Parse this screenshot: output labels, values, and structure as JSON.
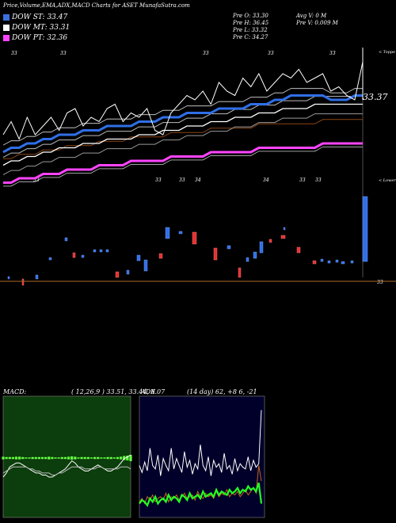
{
  "header": {
    "title": "Price,Volume,EMA,ADX,MACD Charts for ASET MunafaSutra.com",
    "stats_col1": [
      "Pre  O: 33.30",
      "Pre  H: 36.45",
      "Pre  L: 33.32",
      "Pre  C: 34.27"
    ],
    "stats_col2": [
      "Avg V: 0  M",
      "Pre  V: 0.009 M"
    ]
  },
  "legend": [
    {
      "label": "DOW ST: 33.47",
      "color": "#3a6fe0"
    },
    {
      "label": "DOW MT: 33.31",
      "color": "#ffffff"
    },
    {
      "label": "DOW PT: 32.36",
      "color": "#ff44ff"
    }
  ],
  "colors": {
    "up": "#2f6fe8",
    "down": "#e53030",
    "ema_short": "#2f6fe8",
    "ema_mid": "#ffffff",
    "ema_long": "#ff44ff",
    "ema_brown": "#8b4513",
    "macd_bg": "#0c3d0c",
    "adx_bg": "#00002a",
    "adx_di_plus": "#22ff22",
    "adx_di_minus": "#c8641e"
  },
  "price_annotations": {
    "last_price": "33.37",
    "right_upper": "< Toppe",
    "right_lower": "< Lower",
    "bottom_right": "33",
    "top_marks": [
      "33",
      "33",
      "33",
      "33",
      "33"
    ],
    "bottom_marks": [
      "33",
      "33",
      "34",
      "34",
      "33",
      "33"
    ]
  },
  "macd_panel": {
    "title": "MACD:",
    "params": "( 12,26,9 ) 33.51,  33.44,  0.07"
  },
  "adx_panel": {
    "title": "ADX",
    "params": "(14  day) 62, +8                 6, -21"
  },
  "chart_data": [
    {
      "type": "line",
      "title": "Price,Volume,EMA,ADX,MACD Charts for ASET MunafaSutra.com",
      "series": [
        {
          "name": "DOW ST",
          "values": [
            32.2,
            32.3,
            32.3,
            32.4,
            32.4,
            32.5,
            32.5,
            32.6,
            32.6,
            32.6,
            32.7,
            32.7,
            32.7,
            32.8,
            32.8,
            32.8,
            32.8,
            32.9,
            32.9,
            32.9,
            33.0,
            33.0,
            33.0,
            33.1,
            33.1,
            33.1,
            33.1,
            33.2,
            33.2,
            33.2,
            33.2,
            33.3,
            33.3,
            33.3,
            33.4,
            33.4,
            33.5,
            33.5,
            33.5,
            33.5,
            33.5,
            33.4,
            33.4,
            33.4,
            33.5,
            33.5
          ]
        },
        {
          "name": "DOW MT",
          "values": [
            31.9,
            32.0,
            32.0,
            32.1,
            32.1,
            32.2,
            32.2,
            32.3,
            32.3,
            32.3,
            32.4,
            32.4,
            32.4,
            32.5,
            32.5,
            32.5,
            32.5,
            32.6,
            32.6,
            32.6,
            32.7,
            32.7,
            32.7,
            32.8,
            32.8,
            32.8,
            32.9,
            32.9,
            32.9,
            33.0,
            33.0,
            33.0,
            33.1,
            33.1,
            33.1,
            33.2,
            33.2,
            33.2,
            33.2,
            33.3,
            33.3,
            33.3,
            33.3,
            33.3,
            33.3,
            33.3
          ]
        },
        {
          "name": "DOW PT",
          "values": [
            31.5,
            31.5,
            31.6,
            31.6,
            31.6,
            31.7,
            31.7,
            31.7,
            31.8,
            31.8,
            31.8,
            31.8,
            31.9,
            31.9,
            31.9,
            31.9,
            32.0,
            32.0,
            32.0,
            32.0,
            32.0,
            32.1,
            32.1,
            32.1,
            32.1,
            32.1,
            32.2,
            32.2,
            32.2,
            32.2,
            32.2,
            32.2,
            32.3,
            32.3,
            32.3,
            32.3,
            32.3,
            32.3,
            32.3,
            32.3,
            32.4,
            32.4,
            32.4,
            32.4,
            32.4,
            32.4
          ]
        }
      ],
      "close": [
        32.6,
        32.9,
        32.5,
        33.0,
        32.6,
        32.8,
        33.0,
        32.7,
        33.1,
        33.2,
        32.8,
        33.0,
        32.9,
        33.2,
        33.3,
        32.9,
        33.1,
        33.0,
        33.2,
        32.7,
        32.6,
        33.1,
        33.3,
        33.5,
        33.4,
        33.6,
        33.3,
        33.8,
        33.6,
        33.5,
        33.9,
        33.7,
        34.0,
        33.6,
        33.8,
        34.0,
        33.9,
        34.1,
        33.8,
        33.9,
        34.0,
        33.6,
        33.7,
        33.5,
        33.4,
        34.27
      ],
      "ylim": [
        31.0,
        34.6
      ]
    },
    {
      "type": "bar",
      "title": "Volume",
      "values": [
        0.0,
        0.0,
        0.0,
        0.0,
        0.0,
        0.0,
        0.0,
        0.0,
        0.0,
        0.0,
        0.0,
        0.0,
        0.0,
        0.0,
        0.0,
        0.0,
        0.0,
        0.0,
        0.0,
        0.0,
        0.0,
        0.0,
        0.0,
        0.0,
        0.0,
        0.0,
        0.0,
        0.0,
        0.0,
        0.0,
        0.0,
        0.0,
        0.0,
        0.0,
        0.0,
        0.0,
        0.0,
        0.0,
        0.0,
        0.0,
        0.0,
        0.0,
        0.0,
        0.0,
        0.0,
        0.009
      ]
    },
    {
      "type": "line",
      "title": "MACD: ( 12,26,9 ) 33.51,  33.44,  0.07",
      "series": [
        {
          "name": "MACD",
          "values": [
            33.4,
            33.42,
            33.45,
            33.46,
            33.47,
            33.47,
            33.46,
            33.45,
            33.44,
            33.43,
            33.42,
            33.42,
            33.41,
            33.41,
            33.4,
            33.4,
            33.41,
            33.42,
            33.43,
            33.44,
            33.46,
            33.48,
            33.47,
            33.45,
            33.44,
            33.43,
            33.43,
            33.44,
            33.45,
            33.46,
            33.45,
            33.44,
            33.43,
            33.43,
            33.44,
            33.45,
            33.47,
            33.49,
            33.5,
            33.51
          ]
        },
        {
          "name": "Signal",
          "values": [
            33.42,
            33.43,
            33.44,
            33.45,
            33.45,
            33.45,
            33.45,
            33.45,
            33.44,
            33.44,
            33.43,
            33.43,
            33.42,
            33.42,
            33.42,
            33.41,
            33.41,
            33.42,
            33.42,
            33.43,
            33.44,
            33.45,
            33.45,
            33.45,
            33.45,
            33.44,
            33.44,
            33.44,
            33.44,
            33.45,
            33.45,
            33.44,
            33.44,
            33.44,
            33.44,
            33.44,
            33.45,
            33.45,
            33.45,
            33.44
          ]
        }
      ],
      "ylim": [
        33.2,
        33.8
      ]
    },
    {
      "type": "line",
      "title": "ADX (14  day) 62, +8  6, -21",
      "series": [
        {
          "name": "ADX",
          "values": [
            30,
            26,
            32,
            27,
            40,
            30,
            28,
            36,
            24,
            34,
            30,
            27,
            40,
            28,
            34,
            30,
            26,
            38,
            29,
            33,
            25,
            31,
            28,
            42,
            30,
            27,
            35,
            24,
            33,
            29,
            31,
            26,
            37,
            28,
            30,
            25,
            34,
            27,
            31,
            29,
            28,
            35,
            27,
            33,
            29,
            31,
            62
          ]
        },
        {
          "name": "+DI",
          "values": [
            8,
            10,
            9,
            7,
            11,
            9,
            12,
            8,
            10,
            11,
            9,
            13,
            10,
            12,
            11,
            9,
            13,
            12,
            10,
            14,
            11,
            12,
            13,
            11,
            15,
            12,
            13,
            14,
            12,
            16,
            13,
            15,
            14,
            13,
            16,
            14,
            15,
            17,
            14,
            16,
            15,
            18,
            16,
            17,
            15,
            20,
            8
          ]
        },
        {
          "name": "-DI",
          "values": [
            9,
            11,
            8,
            12,
            10,
            13,
            9,
            11,
            12,
            10,
            14,
            9,
            12,
            11,
            13,
            10,
            12,
            14,
            11,
            12,
            13,
            10,
            15,
            12,
            11,
            14,
            12,
            13,
            11,
            15,
            12,
            14,
            13,
            16,
            12,
            14,
            13,
            15,
            12,
            14,
            16,
            13,
            15,
            17,
            14,
            30,
            21
          ]
        }
      ],
      "ylim": [
        0,
        70
      ]
    }
  ]
}
